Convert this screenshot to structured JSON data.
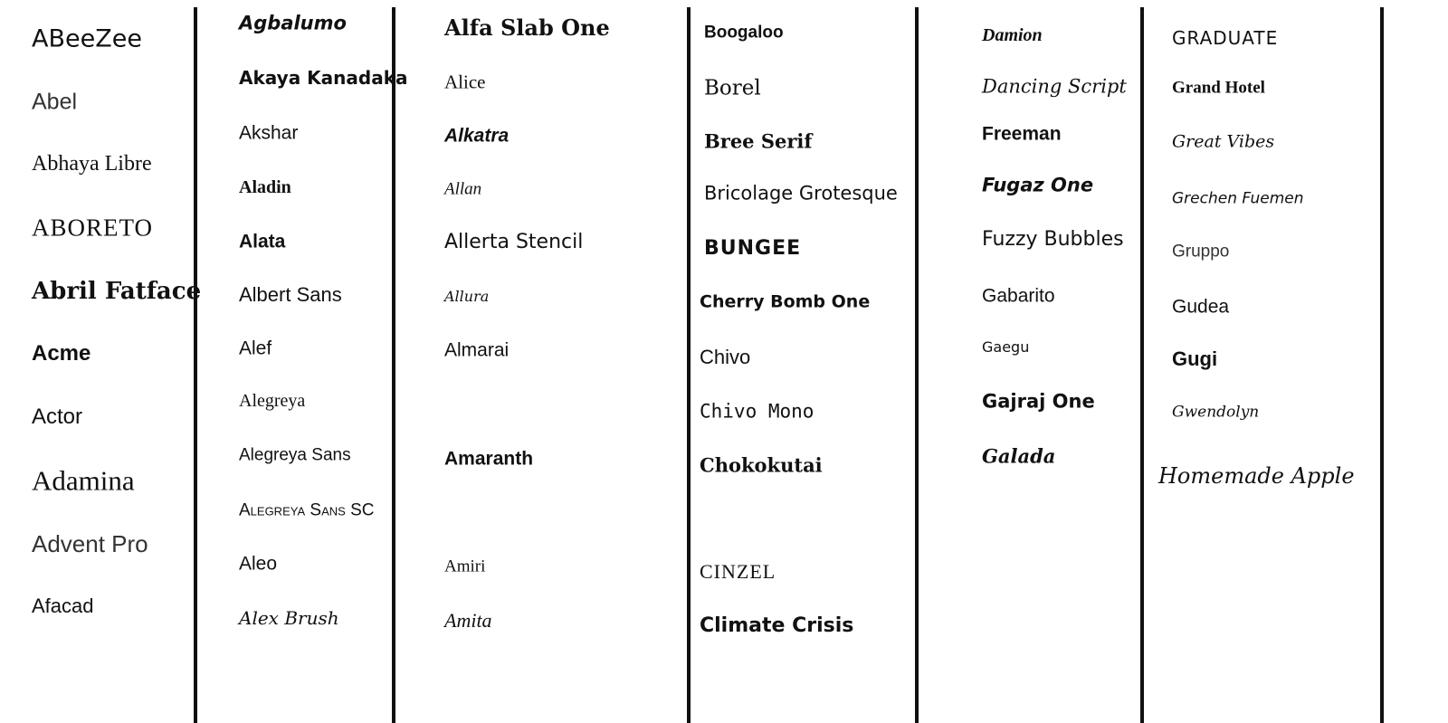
{
  "columns": [
    {
      "fonts": [
        "ABeeZee",
        "Abel",
        "Abhaya Libre",
        "ABORETO",
        "Abril Fatface",
        "Acme",
        "Actor",
        "Adamina",
        "Advent Pro",
        "Afacad"
      ]
    },
    {
      "fonts": [
        "Agbalumo",
        "Akaya Kanadaka",
        "Akshar",
        "Aladin",
        "Alata",
        "Albert Sans",
        "Alef",
        "Alegreya",
        "Alegreya Sans",
        "Alegreya Sans SC",
        "Aleo",
        "Alex Brush"
      ]
    },
    {
      "fonts": [
        "Alfa Slab One",
        "Alice",
        "Alkatra",
        "Allan",
        "Allerta Stencil",
        "Allura",
        "Almarai",
        "Amaranth",
        "Amiri",
        "Amita"
      ]
    },
    {
      "fonts": [
        "Boogaloo",
        "Borel",
        "Bree Serif",
        "Bricolage Grotesque",
        "BUNGEE",
        "Cherry Bomb One",
        "Chivo",
        "Chivo Mono",
        "Chokokutai",
        "CINZEL",
        "Climate Crisis"
      ]
    },
    {
      "fonts": [
        "Damion",
        "Dancing Script",
        "Freeman",
        "Fugaz One",
        "Fuzzy Bubbles",
        "Gabarito",
        "Gaegu",
        "Gajraj One",
        "Galada"
      ]
    },
    {
      "fonts": [
        "GRADUATE",
        "Grand Hotel",
        "Great Vibes",
        "Grechen Fuemen",
        "Gruppo",
        "Gudea",
        "Gugi",
        "Gwendolyn",
        "Homemade Apple"
      ]
    }
  ],
  "colors": {
    "text": "#111111",
    "divider": "#111111",
    "background": "#ffffff"
  }
}
